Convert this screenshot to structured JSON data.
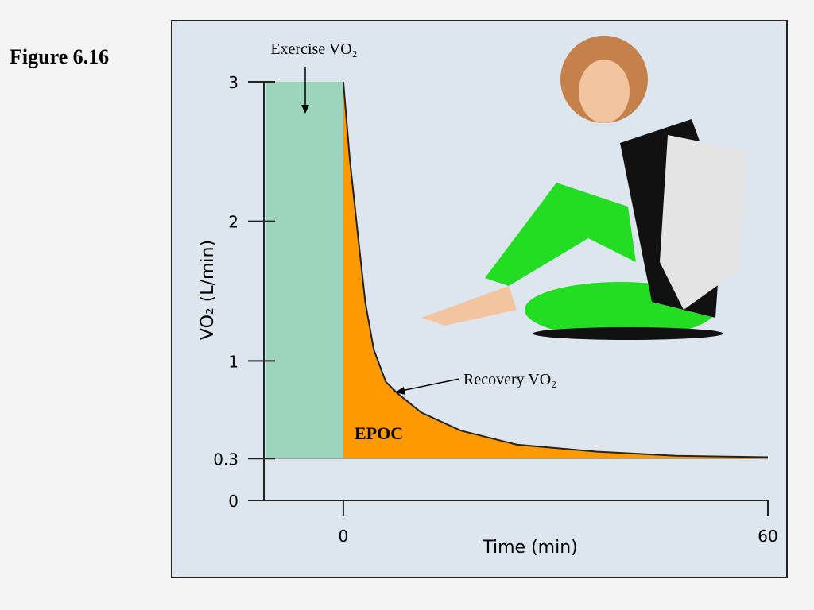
{
  "chart_data": {
    "type": "area",
    "figure_label": "Figure 6.16",
    "x_label": "Time (min)",
    "y_label": "VO₂ (L/min)",
    "annotations": {
      "exercise": "Exercise VO₂",
      "recovery": "Recovery VO₂",
      "epoc": "EPOC"
    },
    "xlim": [
      -11,
      60
    ],
    "xticks": [
      0,
      60
    ],
    "ylim": [
      0,
      3
    ],
    "yticks": [
      0,
      0.3,
      1,
      2,
      3
    ],
    "baseline": 0.3,
    "series": [
      {
        "color": "#9dd4bc",
        "x": [
          -11,
          0
        ],
        "values": [
          3,
          3
        ]
      },
      {
        "color": "#ff9900",
        "x": [
          0,
          0.9,
          2,
          3.1,
          4.3,
          6,
          7.6,
          11,
          16.6,
          24.5,
          35.7,
          47,
          60
        ],
        "values": [
          3,
          2.45,
          1.93,
          1.42,
          1.08,
          0.85,
          0.77,
          0.63,
          0.5,
          0.4,
          0.35,
          0.32,
          0.31
        ]
      }
    ]
  }
}
